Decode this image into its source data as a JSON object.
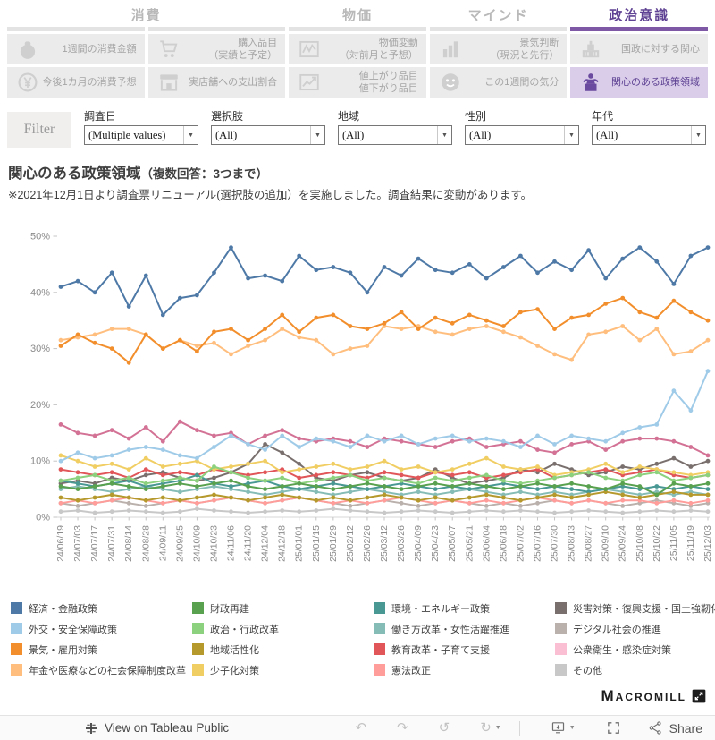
{
  "tabs": [
    {
      "label": "消費",
      "span": 2,
      "active": false
    },
    {
      "label": "物価",
      "span": 1,
      "active": false
    },
    {
      "label": "マインド",
      "span": 1,
      "active": false
    },
    {
      "label": "政治意識",
      "span": 1,
      "active": true
    }
  ],
  "tiles": [
    {
      "label": "1週間の消費金額",
      "icon": "purse-icon",
      "selected": false
    },
    {
      "label": "購入品目\n（実績と予定）",
      "icon": "cart-icon",
      "selected": false
    },
    {
      "label": "物価変動\n（対前月と予想）",
      "icon": "price-chart-icon",
      "selected": false
    },
    {
      "label": "景気判断\n（現況と先行）",
      "icon": "bar-chart-icon",
      "selected": false
    },
    {
      "label": "国政に対する関心",
      "icon": "parliament-icon",
      "selected": false
    },
    {
      "label": "今後1カ月の消費予想",
      "icon": "yen-coin-icon",
      "selected": false
    },
    {
      "label": "実店舗への支出割合",
      "icon": "store-icon",
      "selected": false
    },
    {
      "label": "値上がり品目\n値下がり品目",
      "icon": "up-chart-icon",
      "selected": false
    },
    {
      "label": "この1週間の気分",
      "icon": "smiley-icon",
      "selected": false
    },
    {
      "label": "関心のある政策領域",
      "icon": "podium-icon",
      "selected": true
    }
  ],
  "filter_bar": {
    "button_label": "Filter",
    "filters": [
      {
        "label": "調査日",
        "value": "(Multiple values)"
      },
      {
        "label": "選択肢",
        "value": "(All)"
      },
      {
        "label": "地域",
        "value": "(All)"
      },
      {
        "label": "性別",
        "value": "(All)"
      },
      {
        "label": "年代",
        "value": "(All)"
      }
    ]
  },
  "title_main": "関心のある政策領域",
  "title_sub": "（複数回答：3つまで）",
  "note": "※2021年12月1日より調査票リニューアル(選択肢の追加）を実施しました。調査結果に変動があります。",
  "chart_data": {
    "type": "line",
    "title": "関心のある政策領域（複数回答：3つまで）",
    "xlabel": "",
    "ylabel": "",
    "ylim": [
      0,
      50
    ],
    "yticks": [
      "0%",
      "10%",
      "20%",
      "30%",
      "40%",
      "50%"
    ],
    "grid": false,
    "legend_position": "bottom",
    "x": [
      "24/06/19",
      "24/07/03",
      "24/07/17",
      "24/07/31",
      "24/08/14",
      "24/08/28",
      "24/09/11",
      "24/09/25",
      "24/10/09",
      "24/10/23",
      "24/11/06",
      "24/11/20",
      "24/12/04",
      "24/12/18",
      "25/01/01",
      "25/01/15",
      "25/01/29",
      "25/02/12",
      "25/02/26",
      "25/03/12",
      "25/03/26",
      "25/04/09",
      "25/04/23",
      "25/05/07",
      "25/05/21",
      "25/06/04",
      "25/06/18",
      "25/07/02",
      "25/07/16",
      "25/07/30",
      "25/08/13",
      "25/08/27",
      "25/09/10",
      "25/09/24",
      "25/10/08",
      "25/10/22",
      "25/11/05",
      "25/11/19",
      "25/12/03"
    ],
    "series": [
      {
        "name": "経済・金融政策",
        "color": "#4e79a7",
        "values": [
          41,
          42,
          40,
          43.5,
          37.5,
          43,
          36,
          39,
          39.5,
          43.5,
          48,
          42.5,
          43,
          42,
          46.5,
          44,
          44.5,
          43.5,
          40,
          44.5,
          43,
          46,
          44,
          43.5,
          45,
          42.5,
          44.5,
          46.5,
          43.5,
          45.5,
          44,
          47.5,
          42.5,
          46,
          48,
          45.5,
          41.5,
          46.5,
          48
        ]
      },
      {
        "name": "外交・安全保障政策",
        "color": "#a0cbe8",
        "values": [
          10,
          11.5,
          10.5,
          11,
          12,
          12.5,
          12,
          11,
          10.5,
          12.5,
          14.5,
          13,
          12,
          14.5,
          12.5,
          14,
          13.5,
          12.5,
          14.5,
          13.5,
          14.5,
          13,
          14,
          14.5,
          13.5,
          14,
          13.5,
          12.5,
          14.5,
          13,
          14.5,
          14,
          13.5,
          15,
          16,
          16.5,
          22.5,
          19,
          26
        ]
      },
      {
        "name": "景気・雇用対策",
        "color": "#f28e2b",
        "values": [
          30.5,
          32.5,
          31,
          30,
          27.5,
          32.5,
          30,
          31.5,
          29.5,
          33,
          33.5,
          31.5,
          33.5,
          36,
          33,
          35.5,
          36,
          34,
          33.5,
          34.5,
          36.5,
          33.5,
          35.5,
          34.5,
          36,
          35,
          34,
          36.5,
          37,
          33.5,
          35.5,
          36,
          38,
          39,
          36.5,
          35.5,
          38.5,
          36.5,
          35
        ]
      },
      {
        "name": "年金や医療などの社会保障制度改革",
        "color": "#ffbe7d",
        "values": [
          31.5,
          32,
          32.5,
          33.5,
          33.5,
          32.5,
          30,
          31.5,
          30.5,
          31,
          29,
          30.5,
          31.5,
          33.5,
          32,
          31.5,
          29,
          30,
          30.5,
          34,
          33.5,
          34,
          33,
          32.5,
          33.5,
          34,
          33,
          32,
          30.5,
          29,
          28,
          32.5,
          33,
          34,
          31.5,
          33.5,
          29,
          29.5,
          31.5
        ]
      },
      {
        "name": "財政再建",
        "color": "#59a14f",
        "values": [
          5.5,
          5,
          5.5,
          6,
          5.5,
          5,
          5.5,
          6,
          5.5,
          6,
          6.5,
          5.5,
          5,
          5.5,
          6,
          5.5,
          5,
          5.5,
          6,
          5.5,
          5,
          5.5,
          6,
          5.5,
          6,
          5.5,
          5,
          5.5,
          6,
          5.5,
          6,
          5.5,
          5,
          6,
          5.5,
          4,
          6,
          5.5,
          6
        ]
      },
      {
        "name": "政治・行政改革",
        "color": "#8cd17d",
        "values": [
          6.5,
          7,
          7.5,
          6.5,
          7,
          6,
          6.5,
          7,
          6.5,
          9,
          8,
          7,
          6.5,
          7,
          6,
          6.5,
          7,
          7.5,
          6.5,
          7,
          6.5,
          6,
          7,
          6.5,
          7,
          7.5,
          6.5,
          6,
          6.5,
          7,
          7.5,
          8,
          7,
          6.5,
          7.5,
          8,
          6.5,
          7,
          7.5
        ]
      },
      {
        "name": "地域活性化",
        "color": "#b6992d",
        "values": [
          3.5,
          3,
          3.5,
          4,
          3.5,
          3,
          3.5,
          3,
          3.5,
          4,
          3.5,
          3,
          3.5,
          4,
          3.5,
          3,
          3.5,
          3,
          3.5,
          4,
          3.5,
          3,
          3.5,
          3,
          3.5,
          4,
          3.5,
          3,
          3.5,
          4,
          3.5,
          4,
          4.5,
          4,
          3.5,
          4,
          4.5,
          4,
          4
        ]
      },
      {
        "name": "少子化対策",
        "color": "#f1ce63",
        "values": [
          11,
          10,
          9,
          9.5,
          8.5,
          10.5,
          9,
          9.5,
          10,
          8.5,
          9,
          9.5,
          10,
          8,
          8.5,
          9,
          9.5,
          8.5,
          9,
          10,
          8.5,
          9,
          8,
          8.5,
          9.5,
          10.5,
          9,
          8.5,
          9,
          7.5,
          8,
          8.5,
          9.5,
          8,
          9,
          8.5,
          8,
          7.5,
          8
        ]
      },
      {
        "name": "環境・エネルギー政策",
        "color": "#499894",
        "values": [
          6.5,
          6,
          5.5,
          6,
          6.5,
          5.5,
          6,
          6.5,
          7.5,
          6,
          5.5,
          6,
          6.5,
          5.5,
          5,
          5.5,
          6,
          5.5,
          5,
          5.5,
          6,
          5.5,
          5,
          5.5,
          5,
          5.5,
          6,
          5.5,
          5,
          5.5,
          5,
          4.5,
          5,
          5.5,
          5,
          5.5,
          5,
          5.5,
          5
        ]
      },
      {
        "name": "働き方改革・女性活躍推進",
        "color": "#86bcb6",
        "values": [
          5,
          5.5,
          5,
          4.5,
          5,
          5.5,
          5,
          4.5,
          5,
          5.5,
          5,
          4.5,
          4,
          4.5,
          5,
          4.5,
          4,
          4.5,
          5,
          4.5,
          4,
          4.5,
          4,
          4.5,
          5,
          4.5,
          4,
          4.5,
          4,
          4.5,
          4,
          4.5,
          5,
          4.5,
          4,
          4.5,
          4,
          4.5,
          4
        ]
      },
      {
        "name": "教育改革・子育て支援",
        "color": "#e15759",
        "values": [
          8.5,
          8,
          7.5,
          8,
          7,
          8.5,
          7.5,
          8,
          7.5,
          8.5,
          8,
          7.5,
          8,
          8.5,
          7,
          7.5,
          8,
          7.5,
          7,
          8,
          7.5,
          7,
          8,
          7.5,
          8,
          7,
          7.5,
          8,
          8.5,
          7,
          7.5,
          8,
          8.5,
          7.5,
          8,
          8.5,
          7.5,
          7,
          7.5
        ]
      },
      {
        "name": "憲法改正",
        "color": "#ff9d9a",
        "values": [
          2.5,
          3,
          2.5,
          3,
          3.5,
          3,
          2.5,
          3,
          2.5,
          3,
          3.5,
          3,
          2.5,
          3,
          3.5,
          3,
          2.5,
          3,
          2.5,
          3,
          3.5,
          3,
          2.5,
          3,
          2.5,
          3,
          2.5,
          3,
          3.5,
          3,
          2.5,
          3,
          2.5,
          3,
          3,
          2.5,
          3,
          2.5,
          3
        ]
      },
      {
        "name": "災害対策・復興支援・国土強靭化",
        "color": "#79706e",
        "values": [
          6,
          6.5,
          6,
          7,
          6.5,
          7.5,
          8,
          7,
          6.5,
          7,
          8,
          9.5,
          13,
          11.5,
          9.5,
          7,
          6.5,
          7.5,
          8,
          7,
          6.5,
          7,
          8.5,
          7,
          6,
          6.5,
          7,
          8.5,
          8,
          9.5,
          8.5,
          7.5,
          8,
          9,
          8.5,
          9.5,
          10.5,
          9,
          10
        ]
      },
      {
        "name": "デジタル社会の推進",
        "color": "#bab0ac",
        "values": [
          2.5,
          2,
          2.5,
          3,
          2.5,
          2,
          2.5,
          3,
          2.5,
          3,
          3.5,
          3,
          2.5,
          3,
          3.5,
          3,
          2.5,
          2,
          2.5,
          3,
          2.5,
          2,
          2.5,
          3,
          2.5,
          2,
          2.5,
          2,
          2.5,
          3,
          2.5,
          3,
          2.5,
          2,
          2.5,
          3,
          2.5,
          2,
          2.5
        ]
      },
      {
        "name": "公衆衛生・感染症対策",
        "color": "#d37295",
        "legend_color": "#fabfd2",
        "values": [
          16.5,
          15,
          14.5,
          15.5,
          14,
          16,
          13.5,
          17,
          15.5,
          14.5,
          15,
          13,
          14.5,
          15.5,
          14,
          13.5,
          14,
          13.5,
          12.5,
          14,
          13.5,
          13,
          12.5,
          13.5,
          14,
          12.5,
          13,
          13.5,
          12,
          11.5,
          13,
          13.5,
          12,
          13.5,
          14,
          14,
          13.5,
          12.5,
          11
        ]
      },
      {
        "name": "その他",
        "color": "#c8c8c8",
        "values": [
          1,
          1.2,
          0.8,
          1,
          1.2,
          1,
          0.8,
          1,
          1.5,
          1.2,
          1,
          0.8,
          1,
          1.2,
          1,
          1.2,
          1.5,
          1.2,
          1,
          0.8,
          1,
          1.2,
          1,
          0.8,
          1,
          1.2,
          1,
          1.2,
          1,
          0.8,
          1,
          1.2,
          1,
          0.8,
          1,
          1.2,
          1,
          1.2,
          1
        ]
      }
    ]
  },
  "brand": "Macromill",
  "footer": {
    "view_link": "View on Tableau Public",
    "share_label": "Share",
    "icons": [
      "undo-icon",
      "redo-icon",
      "replay-icon",
      "refresh-icon",
      "device-preview-caret",
      "download-icon",
      "fullscreen-icon",
      "share-icon"
    ]
  },
  "colors": {
    "accent_purple": "#5f4293",
    "underline_purple": "#7e57a5",
    "selected_tile_bg": "#d9cdea",
    "tile_bg": "#ebebeb"
  }
}
